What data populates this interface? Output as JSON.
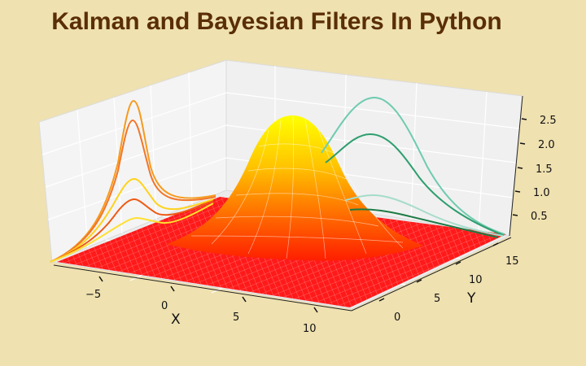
{
  "title": "Kalman and Bayesian Filters In Python",
  "figure": {
    "type": "surface3d",
    "xlabel": "X",
    "ylabel": "Y",
    "x_ticks": [
      "−5",
      "0",
      "5",
      "10"
    ],
    "y_ticks": [
      "0",
      "5",
      "10",
      "15"
    ],
    "z_ticks": [
      "0.5",
      "1.0",
      "1.5",
      "2.0",
      "2.5"
    ],
    "colors": {
      "background": "#efe1b0",
      "title": "#5a2e06",
      "surface_low": "#ff0000",
      "surface_high": "#ffff00",
      "x_projection": [
        "#f59b1e",
        "#f2762a",
        "#ffd21c",
        "#ef5a14",
        "#ffe030"
      ],
      "y_projection": [
        "#6fcbb0",
        "#2e9e6e",
        "#a6dccb",
        "#1c7a44"
      ]
    }
  }
}
